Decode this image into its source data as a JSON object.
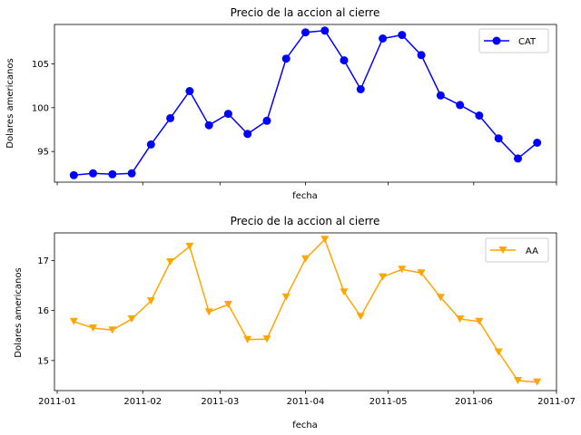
{
  "chart_data": [
    {
      "type": "line",
      "title": "Precio de la accion al cierre",
      "xlabel": "fecha",
      "ylabel": "Dolares americanos",
      "x": [
        "2011-01-07",
        "2011-01-14",
        "2011-01-21",
        "2011-01-28",
        "2011-02-04",
        "2011-02-11",
        "2011-02-18",
        "2011-02-25",
        "2011-03-04",
        "2011-03-11",
        "2011-03-18",
        "2011-03-25",
        "2011-04-01",
        "2011-04-08",
        "2011-04-15",
        "2011-04-21",
        "2011-04-29",
        "2011-05-06",
        "2011-05-13",
        "2011-05-20",
        "2011-05-27",
        "2011-06-03",
        "2011-06-10",
        "2011-06-17",
        "2011-06-24"
      ],
      "series": [
        {
          "name": "CAT",
          "color": "#0000ff",
          "marker": "circle",
          "values": [
            92.3,
            92.5,
            92.4,
            92.5,
            95.8,
            98.8,
            101.9,
            98.0,
            99.3,
            97.0,
            98.5,
            105.6,
            108.6,
            108.8,
            105.4,
            102.1,
            107.9,
            108.3,
            106.0,
            101.4,
            100.3,
            99.1,
            96.5,
            94.2,
            96.0
          ]
        }
      ],
      "xlim": [
        "2010-12-31",
        "2011-07-01"
      ],
      "ylim": [
        91.5,
        109.5
      ],
      "yticks": [
        95,
        100,
        105
      ],
      "xticks": [
        "2011-01",
        "2011-02",
        "2011-03",
        "2011-04",
        "2011-05",
        "2011-06",
        "2011-07"
      ],
      "show_xtick_labels": false,
      "grid": false,
      "legend": "upper right"
    },
    {
      "type": "line",
      "title": "Precio de la accion al cierre",
      "xlabel": "fecha",
      "ylabel": "Dolares americanos",
      "x": [
        "2011-01-07",
        "2011-01-14",
        "2011-01-21",
        "2011-01-28",
        "2011-02-04",
        "2011-02-11",
        "2011-02-18",
        "2011-02-25",
        "2011-03-04",
        "2011-03-11",
        "2011-03-18",
        "2011-03-25",
        "2011-04-01",
        "2011-04-08",
        "2011-04-15",
        "2011-04-21",
        "2011-04-29",
        "2011-05-06",
        "2011-05-13",
        "2011-05-20",
        "2011-05-27",
        "2011-06-03",
        "2011-06-10",
        "2011-06-17",
        "2011-06-24"
      ],
      "series": [
        {
          "name": "AA",
          "color": "#ffa500",
          "marker": "triangle-down",
          "values": [
            15.78,
            15.65,
            15.61,
            15.83,
            16.19,
            16.97,
            17.28,
            15.97,
            16.12,
            15.42,
            15.43,
            16.27,
            17.03,
            17.42,
            16.37,
            15.88,
            16.67,
            16.82,
            16.75,
            16.26,
            15.83,
            15.78,
            15.17,
            14.6,
            14.57
          ]
        }
      ],
      "xlim": [
        "2010-12-31",
        "2011-07-01"
      ],
      "ylim": [
        14.4,
        17.55
      ],
      "yticks": [
        15,
        16,
        17
      ],
      "xticks": [
        "2011-01",
        "2011-02",
        "2011-03",
        "2011-04",
        "2011-05",
        "2011-06",
        "2011-07"
      ],
      "show_xtick_labels": true,
      "grid": false,
      "legend": "upper right"
    }
  ]
}
